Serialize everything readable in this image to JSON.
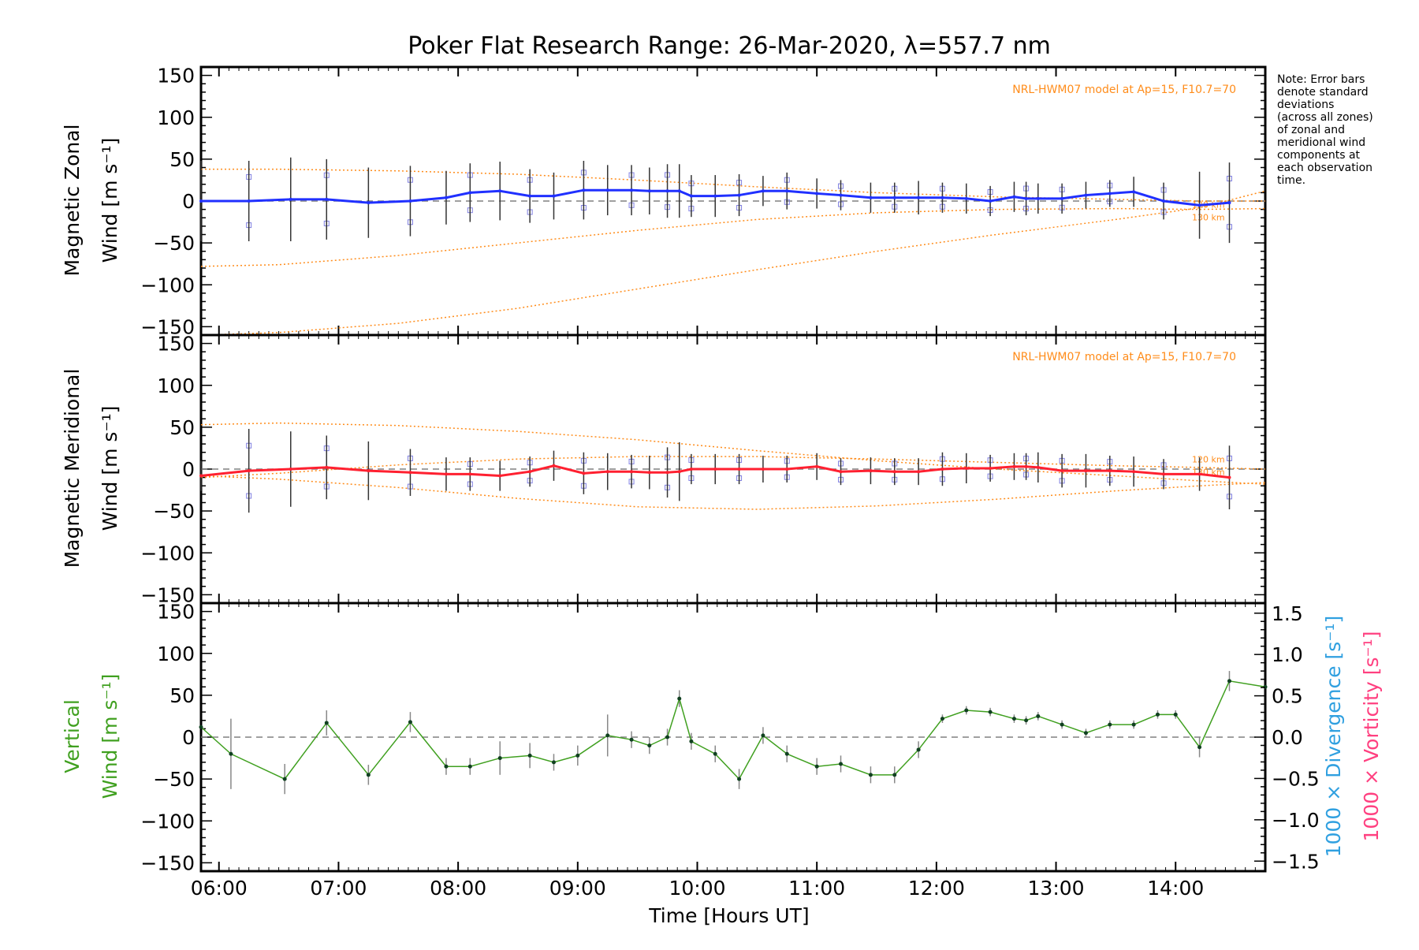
{
  "title": "Poker Flat Research Range: 26-Mar-2020, λ=557.7 nm",
  "note_lines": [
    "Note: Error bars",
    "denote standard",
    "deviations",
    "(across all zones)",
    "of zonal and",
    "meridional wind",
    "components at",
    "each observation",
    "time."
  ],
  "model_label": "NRL-HWM07 model at Ap=15, F10.7=70",
  "km_labels": [
    "120 km",
    "130 km"
  ],
  "colors": {
    "zonal": "#2030ff",
    "meridional": "#ff2030",
    "vertical": "#40a020",
    "model": "#ff8c1a",
    "zone_points": "#8080e0",
    "divergence": "#30a0e0",
    "vorticity": "#ff4080",
    "zero_line": "#808080"
  },
  "panels": {
    "zonal": {
      "ylabel_line1": "Magnetic Zonal",
      "ylabel_line2": "Wind [m s⁻¹]"
    },
    "meridional": {
      "ylabel_line1": "Magnetic Meridional",
      "ylabel_line2": "Wind [m s⁻¹]"
    },
    "vertical": {
      "ylabel_line1": "Vertical",
      "ylabel_line2": "Wind [m s⁻¹]",
      "right_label_divergence": "1000 × Divergence [s⁻¹]",
      "right_label_vorticity": "1000 × Vorticity [s⁻¹]"
    }
  },
  "xaxis_label": "Time [Hours UT]",
  "chart_data": {
    "type": "line",
    "x_unit": "hours UT",
    "xlim": [
      5.85,
      14.75
    ],
    "ylim": [
      -160,
      160
    ],
    "right_ylim": [
      -1.5,
      1.5
    ],
    "x_ticks": [
      6,
      7,
      8,
      9,
      10,
      11,
      12,
      13,
      14
    ],
    "x_tick_labels": [
      "06:00",
      "07:00",
      "08:00",
      "09:00",
      "10:00",
      "11:00",
      "12:00",
      "13:00",
      "14:00"
    ],
    "y_ticks": [
      150,
      100,
      50,
      0,
      -50,
      -100,
      -150
    ],
    "y_tick_labels": [
      "150",
      "100",
      "50",
      "0",
      "−50",
      "−100",
      "−150"
    ],
    "right_ticks": [
      1.5,
      1.0,
      0.5,
      0.0,
      -0.5,
      -1.0,
      -1.5
    ],
    "right_tick_labels": [
      "1.5",
      "1.0",
      "0.5",
      "0.0",
      "−0.5",
      "−1.0",
      "−1.5"
    ],
    "zonal": {
      "x": [
        5.85,
        6.25,
        6.6,
        6.9,
        7.25,
        7.6,
        7.9,
        8.1,
        8.35,
        8.6,
        8.8,
        9.05,
        9.25,
        9.45,
        9.6,
        9.75,
        9.85,
        9.95,
        10.15,
        10.35,
        10.55,
        10.75,
        11.0,
        11.2,
        11.45,
        11.65,
        11.85,
        12.05,
        12.25,
        12.45,
        12.65,
        12.75,
        12.85,
        13.05,
        13.25,
        13.45,
        13.65,
        13.9,
        14.2,
        14.45
      ],
      "y": [
        0,
        0,
        2,
        2,
        -2,
        0,
        4,
        10,
        12,
        6,
        6,
        13,
        13,
        13,
        12,
        12,
        12,
        6,
        6,
        7,
        12,
        12,
        9,
        7,
        4,
        4,
        4,
        4,
        3,
        0,
        5,
        3,
        3,
        3,
        7,
        9,
        11,
        0,
        -5,
        -2
      ],
      "err": [
        48,
        48,
        50,
        48,
        42,
        42,
        32,
        35,
        35,
        32,
        28,
        35,
        30,
        30,
        28,
        32,
        32,
        25,
        25,
        25,
        18,
        22,
        18,
        18,
        18,
        18,
        20,
        18,
        18,
        18,
        18,
        20,
        18,
        18,
        16,
        16,
        18,
        22,
        40,
        48
      ]
    },
    "meridional": {
      "x": [
        5.85,
        6.25,
        6.6,
        6.9,
        7.25,
        7.6,
        7.9,
        8.1,
        8.35,
        8.6,
        8.8,
        9.05,
        9.25,
        9.45,
        9.6,
        9.75,
        9.85,
        9.95,
        10.15,
        10.35,
        10.55,
        10.75,
        11.0,
        11.2,
        11.45,
        11.65,
        11.85,
        12.05,
        12.25,
        12.45,
        12.65,
        12.75,
        12.85,
        13.05,
        13.25,
        13.45,
        13.65,
        13.9,
        14.2,
        14.45
      ],
      "y": [
        -8,
        -2,
        0,
        2,
        -2,
        -4,
        -6,
        -6,
        -8,
        -3,
        4,
        -5,
        -3,
        -3,
        -4,
        -4,
        -3,
        0,
        0,
        0,
        0,
        0,
        3,
        -3,
        -2,
        -3,
        -3,
        0,
        1,
        1,
        3,
        3,
        2,
        -2,
        -2,
        -2,
        -3,
        -6,
        -6,
        -10
      ],
      "err": [
        18,
        50,
        45,
        38,
        35,
        28,
        20,
        20,
        18,
        18,
        18,
        25,
        22,
        20,
        20,
        30,
        35,
        18,
        18,
        18,
        16,
        16,
        16,
        16,
        16,
        16,
        16,
        20,
        18,
        16,
        16,
        16,
        18,
        20,
        20,
        18,
        18,
        18,
        20,
        38
      ]
    },
    "vertical": {
      "x": [
        5.85,
        6.1,
        6.55,
        6.9,
        7.25,
        7.6,
        7.9,
        8.1,
        8.35,
        8.6,
        8.8,
        9.0,
        9.25,
        9.45,
        9.6,
        9.75,
        9.85,
        9.95,
        10.15,
        10.35,
        10.55,
        10.75,
        11.0,
        11.2,
        11.45,
        11.65,
        11.85,
        12.05,
        12.25,
        12.45,
        12.65,
        12.75,
        12.85,
        13.05,
        13.25,
        13.45,
        13.65,
        13.85,
        14.0,
        14.2,
        14.45,
        14.75
      ],
      "y": [
        12,
        -20,
        -50,
        17,
        -45,
        18,
        -35,
        -35,
        -25,
        -22,
        -30,
        -22,
        2,
        -3,
        -10,
        0,
        46,
        -5,
        -20,
        -50,
        2,
        -20,
        -35,
        -32,
        -45,
        -45,
        -15,
        22,
        32,
        30,
        22,
        20,
        25,
        15,
        5,
        15,
        15,
        27,
        27,
        -12,
        67,
        60
      ],
      "err": [
        0,
        42,
        18,
        15,
        12,
        12,
        10,
        10,
        20,
        15,
        10,
        12,
        25,
        10,
        10,
        10,
        10,
        10,
        10,
        12,
        10,
        10,
        10,
        10,
        10,
        10,
        10,
        5,
        5,
        5,
        5,
        5,
        5,
        5,
        5,
        5,
        5,
        5,
        5,
        12,
        12,
        0
      ]
    },
    "model_curves": {
      "zonal_upper": {
        "x": [
          5.85,
          6.5,
          7.5,
          8.5,
          9.5,
          10.5,
          11.5,
          12.5,
          13.5,
          14.2,
          14.75
        ],
        "y": [
          38,
          38,
          36,
          32,
          25,
          17,
          10,
          5,
          2,
          0,
          0
        ]
      },
      "zonal_lower": {
        "x": [
          5.85,
          6.5,
          7.5,
          8.5,
          9.5,
          10.5,
          11.5,
          12.5,
          13.5,
          14.2,
          14.75
        ],
        "y": [
          -78,
          -76,
          -65,
          -50,
          -35,
          -22,
          -14,
          -10,
          -9,
          -10,
          -9
        ]
      },
      "zonal_low2": {
        "x": [
          5.85,
          6.5,
          7.5,
          8.5,
          9.5,
          10.5,
          11.5,
          12.5,
          13.5,
          14.2,
          14.75
        ],
        "y": [
          -160,
          -157,
          -146,
          -128,
          -105,
          -82,
          -60,
          -40,
          -22,
          -8,
          12
        ]
      },
      "merid_upper": {
        "x": [
          5.85,
          6.5,
          7.5,
          8.5,
          9.5,
          10.5,
          11.5,
          12.5,
          13.5,
          14.2,
          14.75
        ],
        "y": [
          53,
          55,
          52,
          45,
          35,
          22,
          10,
          0,
          -8,
          -14,
          -18
        ]
      },
      "merid_mid": {
        "x": [
          5.85,
          6.5,
          7.5,
          8.5,
          9.5,
          10.5,
          11.5,
          12.5,
          13.5,
          14.2,
          14.75
        ],
        "y": [
          -10,
          -5,
          5,
          12,
          15,
          15,
          12,
          8,
          4,
          2,
          0
        ]
      },
      "merid_lower": {
        "x": [
          5.85,
          6.5,
          7.5,
          8.5,
          9.5,
          10.5,
          11.5,
          12.5,
          13.5,
          14.2,
          14.75
        ],
        "y": [
          -8,
          -12,
          -22,
          -35,
          -45,
          -48,
          -44,
          -36,
          -26,
          -20,
          -16
        ]
      }
    }
  }
}
